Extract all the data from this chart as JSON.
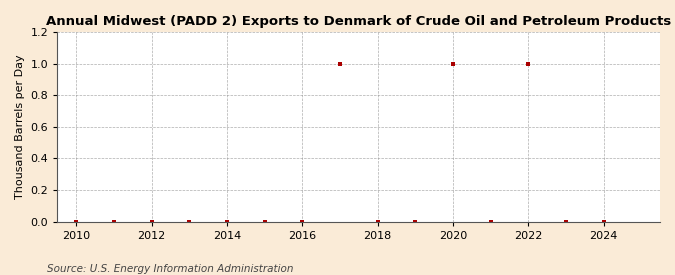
{
  "title": "Annual Midwest (PADD 2) Exports to Denmark of Crude Oil and Petroleum Products",
  "ylabel": "Thousand Barrels per Day",
  "source": "Source: U.S. Energy Information Administration",
  "background_color": "#faebd7",
  "plot_background_color": "#ffffff",
  "xlim": [
    2009.5,
    2025.5
  ],
  "ylim": [
    0.0,
    1.2
  ],
  "xticks": [
    2010,
    2012,
    2014,
    2016,
    2018,
    2020,
    2022,
    2024
  ],
  "yticks": [
    0.0,
    0.2,
    0.4,
    0.6,
    0.8,
    1.0,
    1.2
  ],
  "years": [
    2010,
    2011,
    2012,
    2013,
    2014,
    2015,
    2016,
    2017,
    2018,
    2019,
    2020,
    2021,
    2022,
    2023,
    2024
  ],
  "values": [
    0.0,
    0.0,
    0.0,
    0.0,
    0.0,
    0.0,
    0.0,
    1.0,
    0.0,
    0.0,
    1.0,
    0.0,
    1.0,
    0.0,
    0.0
  ],
  "marker_color": "#aa0000",
  "marker_style": "s",
  "marker_size": 3.5,
  "grid_color": "#999999",
  "grid_style": "--",
  "grid_linewidth": 0.5,
  "title_fontsize": 9.5,
  "ylabel_fontsize": 8,
  "tick_fontsize": 8,
  "source_fontsize": 7.5
}
